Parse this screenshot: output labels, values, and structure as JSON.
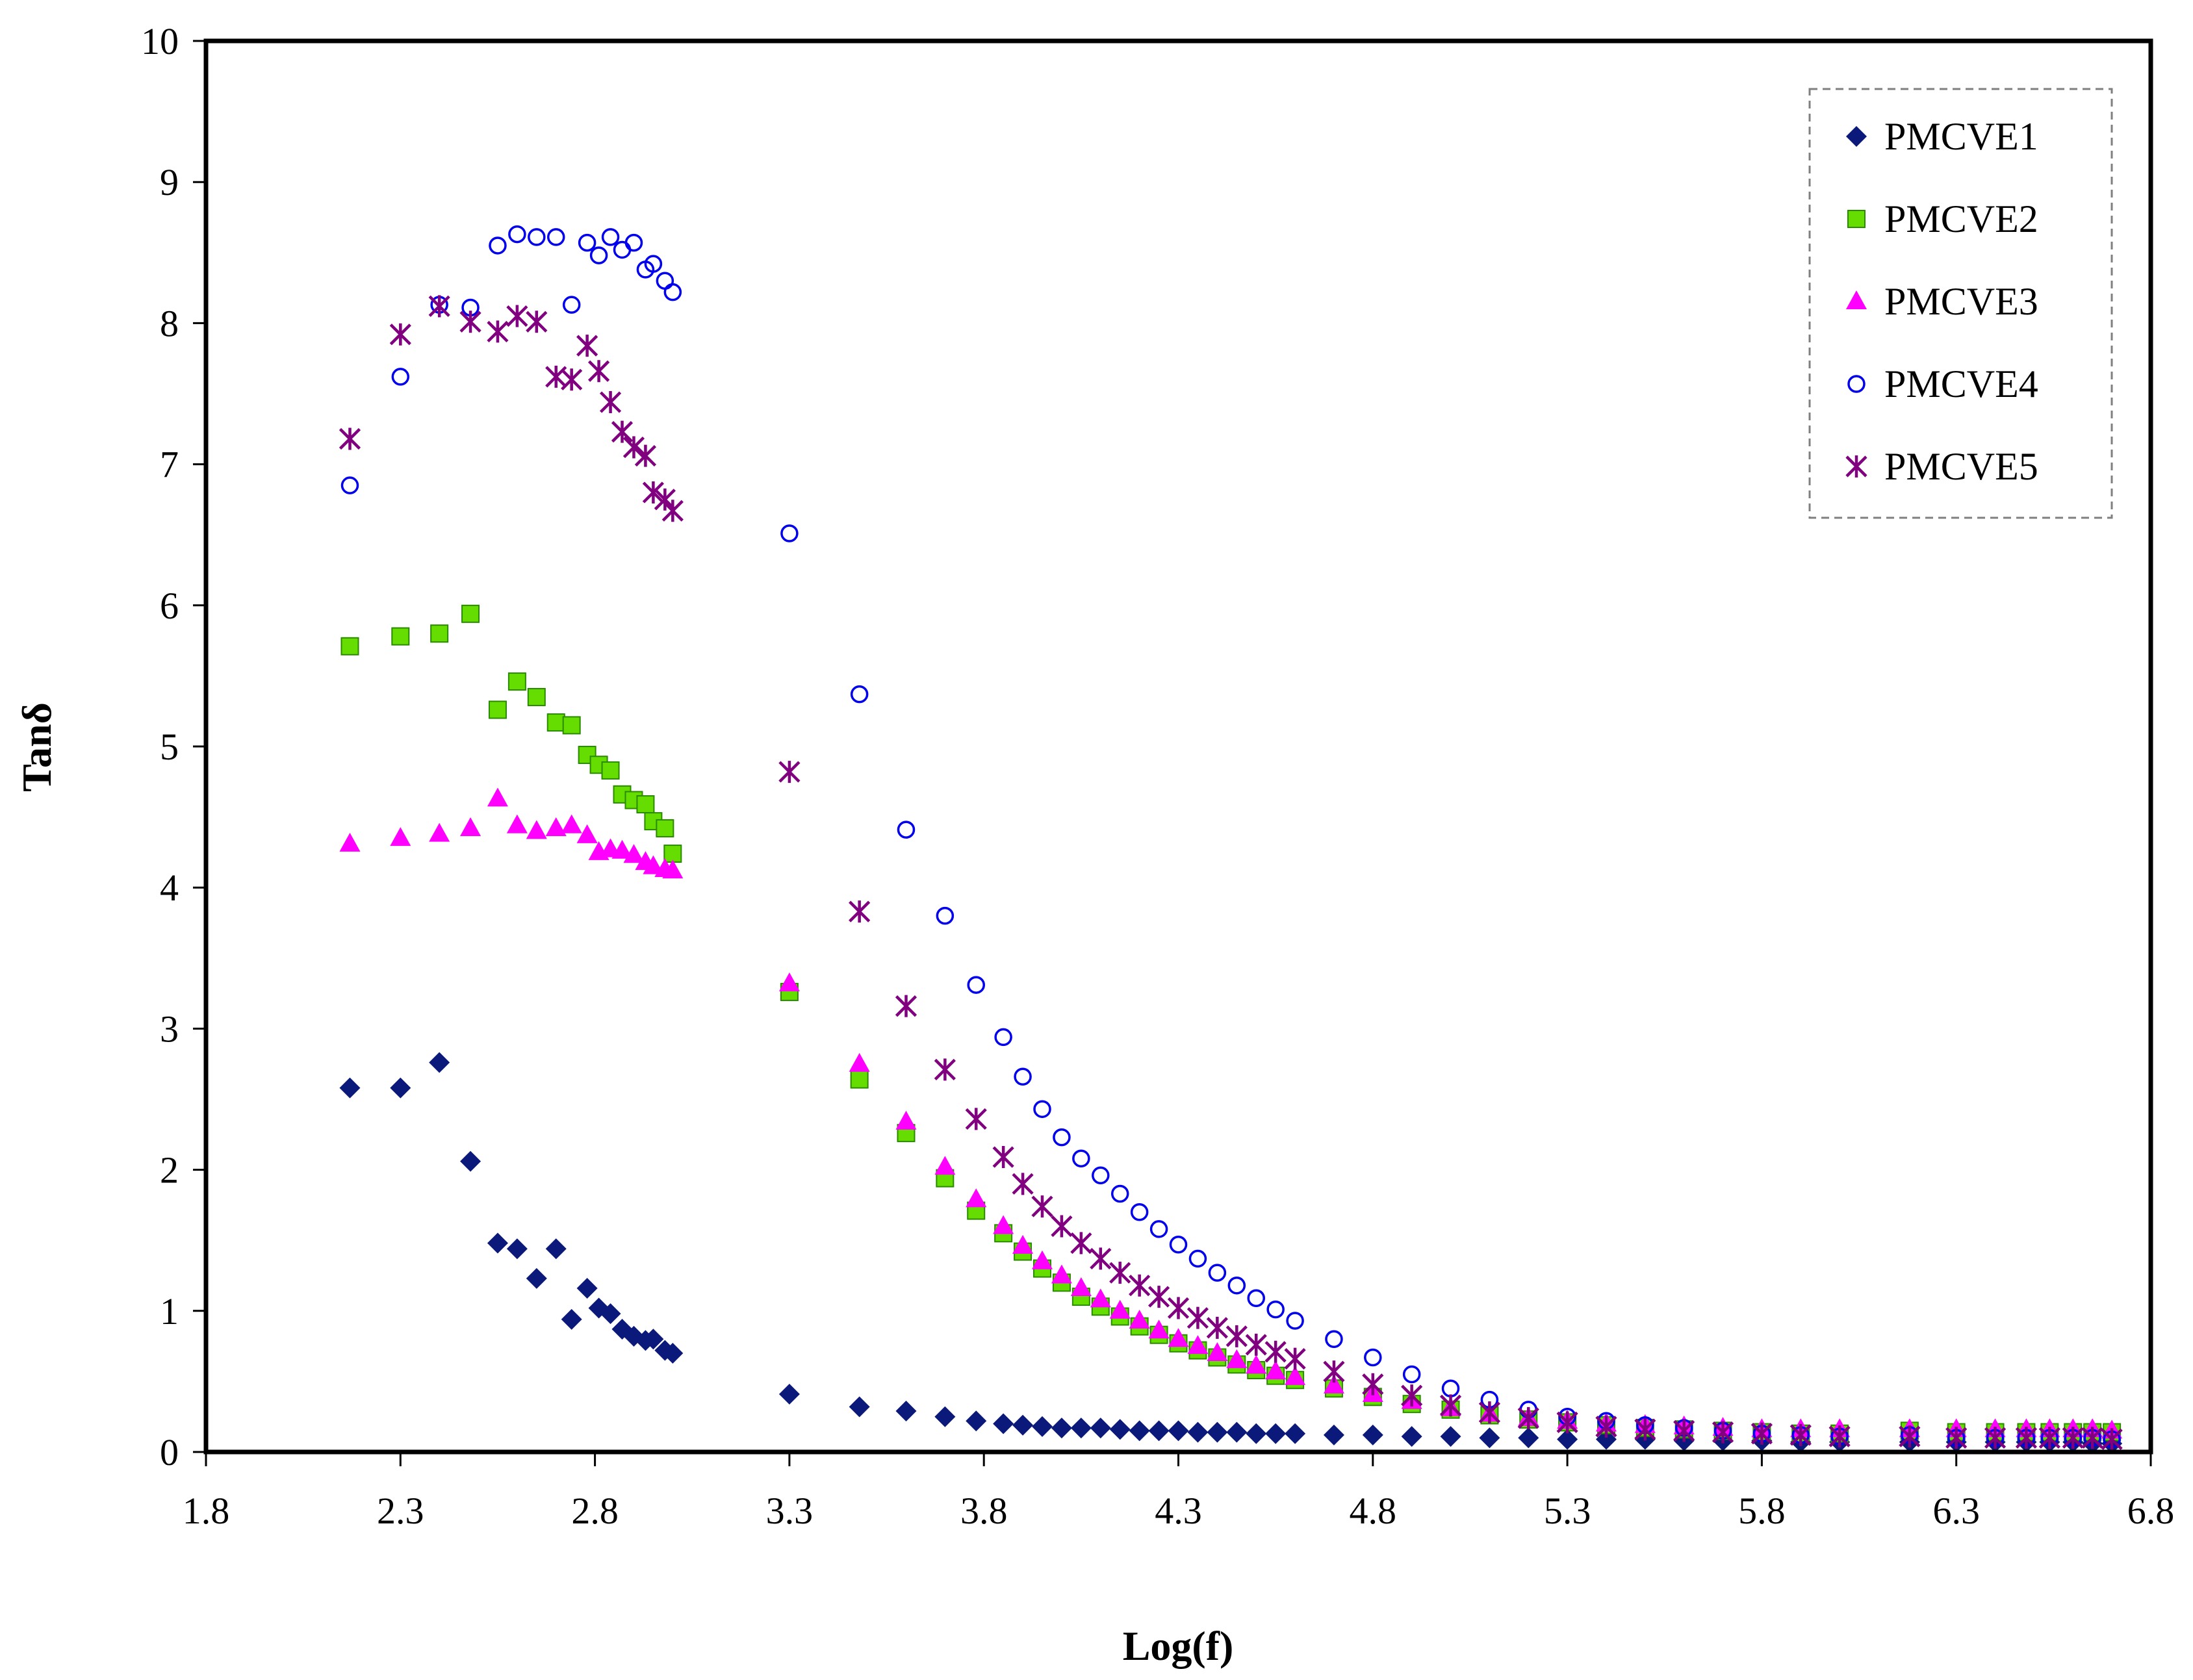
{
  "chart_data": {
    "type": "scatter",
    "title": "",
    "xlabel": "Log(f)",
    "ylabel": "Tanδ",
    "xlim": [
      1.8,
      6.8
    ],
    "ylim": [
      0,
      10
    ],
    "xticks": [
      "1.8",
      "2.3",
      "2.8",
      "3.3",
      "3.8",
      "4.3",
      "4.8",
      "5.3",
      "5.8",
      "6.3",
      "6.8"
    ],
    "yticks": [
      "0",
      "1",
      "2",
      "3",
      "4",
      "5",
      "6",
      "7",
      "8",
      "9",
      "10"
    ],
    "grid": false,
    "legend_position": "top-right",
    "series": [
      {
        "name": "PMCVE1",
        "marker": "diamond",
        "color": "#0b1a7a",
        "x": [
          2.17,
          2.3,
          2.4,
          2.48,
          2.55,
          2.6,
          2.65,
          2.7,
          2.74,
          2.78,
          2.81,
          2.84,
          2.87,
          2.9,
          2.93,
          2.95,
          2.98,
          3.0,
          3.3,
          3.48,
          3.6,
          3.7,
          3.78,
          3.85,
          3.9,
          3.95,
          4.0,
          4.05,
          4.1,
          4.15,
          4.2,
          4.25,
          4.3,
          4.35,
          4.4,
          4.45,
          4.5,
          4.55,
          4.6,
          4.7,
          4.8,
          4.9,
          5.0,
          5.1,
          5.2,
          5.3,
          5.4,
          5.5,
          5.6,
          5.7,
          5.8,
          5.9,
          6.0,
          6.18,
          6.3,
          6.4,
          6.48,
          6.54,
          6.6,
          6.65,
          6.7
        ],
        "y": [
          2.58,
          2.58,
          2.76,
          2.06,
          1.48,
          1.44,
          1.23,
          1.44,
          0.94,
          1.16,
          1.02,
          0.98,
          0.87,
          0.82,
          0.79,
          0.8,
          0.72,
          0.7,
          0.41,
          0.32,
          0.29,
          0.25,
          0.22,
          0.2,
          0.19,
          0.18,
          0.17,
          0.17,
          0.17,
          0.16,
          0.15,
          0.15,
          0.15,
          0.14,
          0.14,
          0.14,
          0.13,
          0.13,
          0.13,
          0.12,
          0.12,
          0.11,
          0.11,
          0.1,
          0.1,
          0.09,
          0.09,
          0.09,
          0.08,
          0.08,
          0.08,
          0.07,
          0.07,
          0.07,
          0.07,
          0.07,
          0.07,
          0.07,
          0.07,
          0.06,
          0.06
        ]
      },
      {
        "name": "PMCVE2",
        "marker": "square",
        "color": "#66dd00",
        "x": [
          2.17,
          2.3,
          2.4,
          2.48,
          2.55,
          2.6,
          2.65,
          2.7,
          2.74,
          2.78,
          2.81,
          2.84,
          2.87,
          2.9,
          2.93,
          2.95,
          2.98,
          3.0,
          3.3,
          3.48,
          3.6,
          3.7,
          3.78,
          3.85,
          3.9,
          3.95,
          4.0,
          4.05,
          4.1,
          4.15,
          4.2,
          4.25,
          4.3,
          4.35,
          4.4,
          4.45,
          4.5,
          4.55,
          4.6,
          4.7,
          4.8,
          4.9,
          5.0,
          5.1,
          5.2,
          5.3,
          5.4,
          5.5,
          5.6,
          5.7,
          5.8,
          5.9,
          6.0,
          6.18,
          6.3,
          6.4,
          6.48,
          6.54,
          6.6,
          6.65,
          6.7
        ],
        "y": [
          5.71,
          5.78,
          5.8,
          5.94,
          5.26,
          5.46,
          5.35,
          5.17,
          5.15,
          4.94,
          4.87,
          4.83,
          4.66,
          4.62,
          4.59,
          4.47,
          4.42,
          4.24,
          3.26,
          2.64,
          2.26,
          1.94,
          1.71,
          1.55,
          1.42,
          1.3,
          1.2,
          1.1,
          1.03,
          0.96,
          0.89,
          0.83,
          0.77,
          0.72,
          0.67,
          0.62,
          0.58,
          0.54,
          0.51,
          0.45,
          0.39,
          0.34,
          0.3,
          0.26,
          0.23,
          0.21,
          0.19,
          0.17,
          0.16,
          0.15,
          0.14,
          0.13,
          0.13,
          0.15,
          0.14,
          0.14,
          0.14,
          0.14,
          0.14,
          0.14,
          0.14
        ]
      },
      {
        "name": "PMCVE3",
        "marker": "triangle",
        "color": "#ff00ff",
        "x": [
          2.17,
          2.3,
          2.4,
          2.48,
          2.55,
          2.6,
          2.65,
          2.7,
          2.74,
          2.78,
          2.81,
          2.84,
          2.87,
          2.9,
          2.93,
          2.95,
          2.98,
          3.0,
          3.3,
          3.48,
          3.6,
          3.7,
          3.78,
          3.85,
          3.9,
          3.95,
          4.0,
          4.05,
          4.1,
          4.15,
          4.2,
          4.25,
          4.3,
          4.35,
          4.4,
          4.45,
          4.5,
          4.55,
          4.6,
          4.7,
          4.8,
          4.9,
          5.0,
          5.1,
          5.2,
          5.3,
          5.4,
          5.5,
          5.6,
          5.7,
          5.8,
          5.9,
          6.0,
          6.18,
          6.3,
          6.4,
          6.48,
          6.54,
          6.6,
          6.65,
          6.7
        ],
        "y": [
          4.31,
          4.35,
          4.38,
          4.42,
          4.63,
          4.44,
          4.4,
          4.42,
          4.44,
          4.37,
          4.25,
          4.27,
          4.26,
          4.23,
          4.18,
          4.15,
          4.13,
          4.12,
          3.32,
          2.75,
          2.34,
          2.02,
          1.79,
          1.6,
          1.46,
          1.35,
          1.25,
          1.16,
          1.08,
          1.0,
          0.93,
          0.86,
          0.8,
          0.75,
          0.7,
          0.65,
          0.61,
          0.57,
          0.53,
          0.47,
          0.41,
          0.36,
          0.31,
          0.27,
          0.24,
          0.22,
          0.2,
          0.19,
          0.18,
          0.17,
          0.16,
          0.16,
          0.16,
          0.16,
          0.16,
          0.16,
          0.16,
          0.16,
          0.16,
          0.16,
          0.15
        ]
      },
      {
        "name": "PMCVE4",
        "marker": "circle",
        "color": "#0000ee",
        "x": [
          2.17,
          2.3,
          2.4,
          2.48,
          2.55,
          2.6,
          2.65,
          2.7,
          2.74,
          2.78,
          2.81,
          2.84,
          2.87,
          2.9,
          2.93,
          2.95,
          2.98,
          3.0,
          3.3,
          3.48,
          3.6,
          3.7,
          3.78,
          3.85,
          3.9,
          3.95,
          4.0,
          4.05,
          4.1,
          4.15,
          4.2,
          4.25,
          4.3,
          4.35,
          4.4,
          4.45,
          4.5,
          4.55,
          4.6,
          4.7,
          4.8,
          4.9,
          5.0,
          5.1,
          5.2,
          5.3,
          5.4,
          5.5,
          5.6,
          5.7,
          5.8,
          5.9,
          6.0,
          6.18,
          6.3,
          6.4,
          6.48,
          6.54,
          6.6,
          6.65,
          6.7
        ],
        "y": [
          6.85,
          7.62,
          8.13,
          8.11,
          8.55,
          8.63,
          8.61,
          8.61,
          8.13,
          8.57,
          8.48,
          8.61,
          8.52,
          8.57,
          8.38,
          8.42,
          8.3,
          8.22,
          6.51,
          5.37,
          4.41,
          3.8,
          3.31,
          2.94,
          2.66,
          2.43,
          2.23,
          2.08,
          1.96,
          1.83,
          1.7,
          1.58,
          1.47,
          1.37,
          1.27,
          1.18,
          1.09,
          1.01,
          0.93,
          0.8,
          0.67,
          0.55,
          0.45,
          0.37,
          0.3,
          0.25,
          0.22,
          0.19,
          0.17,
          0.15,
          0.13,
          0.12,
          0.11,
          0.12,
          0.1,
          0.1,
          0.1,
          0.1,
          0.1,
          0.1,
          0.09
        ]
      },
      {
        "name": "PMCVE5",
        "marker": "star",
        "color": "#800080",
        "x": [
          2.17,
          2.3,
          2.4,
          2.48,
          2.55,
          2.6,
          2.65,
          2.7,
          2.74,
          2.78,
          2.81,
          2.84,
          2.87,
          2.9,
          2.93,
          2.95,
          2.98,
          3.0,
          3.3,
          3.48,
          3.6,
          3.7,
          3.78,
          3.85,
          3.9,
          3.95,
          4.0,
          4.05,
          4.1,
          4.15,
          4.2,
          4.25,
          4.3,
          4.35,
          4.4,
          4.45,
          4.5,
          4.55,
          4.6,
          4.7,
          4.8,
          4.9,
          5.0,
          5.1,
          5.2,
          5.3,
          5.4,
          5.5,
          5.6,
          5.7,
          5.8,
          5.9,
          6.0,
          6.18,
          6.3,
          6.4,
          6.48,
          6.54,
          6.6,
          6.65,
          6.7
        ],
        "y": [
          7.18,
          7.92,
          8.12,
          8.01,
          7.94,
          8.05,
          8.01,
          7.62,
          7.6,
          7.84,
          7.66,
          7.44,
          7.23,
          7.12,
          7.06,
          6.8,
          6.75,
          6.67,
          4.82,
          3.83,
          3.16,
          2.71,
          2.36,
          2.09,
          1.9,
          1.74,
          1.6,
          1.48,
          1.37,
          1.27,
          1.18,
          1.1,
          1.02,
          0.95,
          0.88,
          0.82,
          0.76,
          0.71,
          0.66,
          0.57,
          0.48,
          0.4,
          0.33,
          0.28,
          0.24,
          0.21,
          0.18,
          0.16,
          0.15,
          0.14,
          0.13,
          0.12,
          0.11,
          0.11,
          0.1,
          0.1,
          0.1,
          0.1,
          0.1,
          0.1,
          0.09
        ]
      }
    ]
  }
}
